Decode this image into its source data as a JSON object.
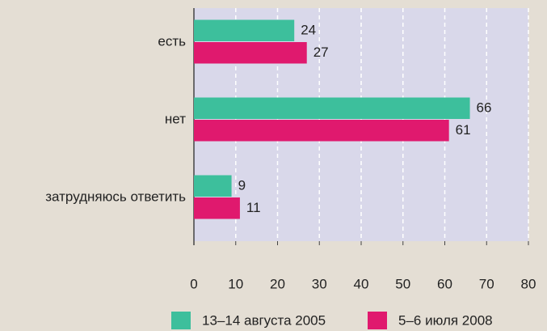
{
  "chart_data": {
    "type": "barh",
    "categories": [
      "есть",
      "нет",
      "затрудняюсь ответить"
    ],
    "series": [
      {
        "name": "13–14 августа 2005",
        "color": "#3dbf9c",
        "values": [
          24,
          66,
          9
        ]
      },
      {
        "name": "5–6 июля 2008",
        "color": "#e0196e",
        "values": [
          27,
          61,
          11
        ]
      }
    ],
    "xlim": [
      0,
      80
    ],
    "xticks": [
      0,
      10,
      20,
      30,
      40,
      50,
      60,
      70,
      80
    ],
    "grid": true
  }
}
